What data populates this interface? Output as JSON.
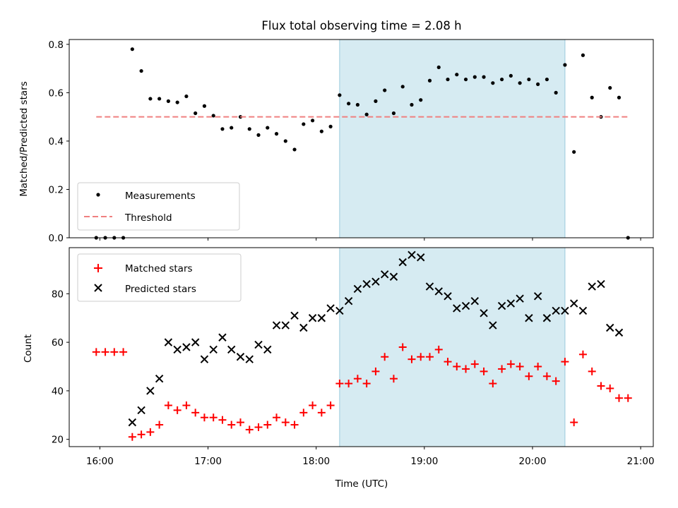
{
  "chart_data": [
    {
      "type": "scatter",
      "title": "Flux total observing time = 2.08 h",
      "xlabel": "",
      "ylabel": "Matched/Predicted stars",
      "xlim": [
        "15:43",
        "21:07"
      ],
      "ylim": [
        0,
        0.82
      ],
      "yticks": [
        "0.0",
        "0.2",
        "0.4",
        "0.6",
        "0.8"
      ],
      "highlight_span": [
        "18:13",
        "20:18"
      ],
      "highlight_color": "#add8e6",
      "legend_position": "lower-left",
      "series": [
        {
          "name": "Measurements",
          "marker": "dot",
          "color": "#000000",
          "points": [
            [
              "15:58",
              0.0
            ],
            [
              "16:03",
              0.0
            ],
            [
              "16:08",
              0.0
            ],
            [
              "16:13",
              0.0
            ],
            [
              "16:18",
              0.78
            ],
            [
              "16:23",
              0.69
            ],
            [
              "16:28",
              0.575
            ],
            [
              "16:33",
              0.575
            ],
            [
              "16:38",
              0.565
            ],
            [
              "16:43",
              0.56
            ],
            [
              "16:48",
              0.585
            ],
            [
              "16:53",
              0.515
            ],
            [
              "16:58",
              0.545
            ],
            [
              "17:03",
              0.505
            ],
            [
              "17:08",
              0.45
            ],
            [
              "17:13",
              0.455
            ],
            [
              "17:18",
              0.5
            ],
            [
              "17:23",
              0.45
            ],
            [
              "17:28",
              0.425
            ],
            [
              "17:33",
              0.455
            ],
            [
              "17:38",
              0.43
            ],
            [
              "17:43",
              0.4
            ],
            [
              "17:48",
              0.365
            ],
            [
              "17:53",
              0.47
            ],
            [
              "17:58",
              0.485
            ],
            [
              "18:03",
              0.44
            ],
            [
              "18:08",
              0.46
            ],
            [
              "18:13",
              0.59
            ],
            [
              "18:18",
              0.555
            ],
            [
              "18:23",
              0.55
            ],
            [
              "18:28",
              0.51
            ],
            [
              "18:33",
              0.565
            ],
            [
              "18:38",
              0.61
            ],
            [
              "18:43",
              0.515
            ],
            [
              "18:48",
              0.625
            ],
            [
              "18:53",
              0.55
            ],
            [
              "18:58",
              0.57
            ],
            [
              "19:03",
              0.65
            ],
            [
              "19:08",
              0.705
            ],
            [
              "19:13",
              0.655
            ],
            [
              "19:18",
              0.675
            ],
            [
              "19:23",
              0.655
            ],
            [
              "19:28",
              0.665
            ],
            [
              "19:33",
              0.665
            ],
            [
              "19:38",
              0.64
            ],
            [
              "19:43",
              0.655
            ],
            [
              "19:48",
              0.67
            ],
            [
              "19:53",
              0.64
            ],
            [
              "19:58",
              0.655
            ],
            [
              "20:03",
              0.635
            ],
            [
              "20:08",
              0.655
            ],
            [
              "20:13",
              0.6
            ],
            [
              "20:18",
              0.715
            ],
            [
              "20:23",
              0.355
            ],
            [
              "20:28",
              0.755
            ],
            [
              "20:33",
              0.58
            ],
            [
              "20:38",
              0.5
            ],
            [
              "20:43",
              0.62
            ],
            [
              "20:48",
              0.58
            ],
            [
              "20:53",
              0.0
            ]
          ]
        },
        {
          "name": "Threshold",
          "marker": "dashed-line",
          "color": "#f08080",
          "points": [
            [
              "15:58",
              0.5
            ],
            [
              "20:53",
              0.5
            ]
          ]
        }
      ]
    },
    {
      "type": "scatter",
      "title": "",
      "xlabel": "Time (UTC)",
      "ylabel": "Count",
      "xlim": [
        "15:43",
        "21:07"
      ],
      "ylim": [
        17,
        99
      ],
      "xticks": [
        "16:00",
        "17:00",
        "18:00",
        "19:00",
        "20:00",
        "21:00"
      ],
      "yticks": [
        "20",
        "40",
        "60",
        "80"
      ],
      "highlight_span": [
        "18:13",
        "20:18"
      ],
      "highlight_color": "#add8e6",
      "legend_position": "top-left",
      "series": [
        {
          "name": "Matched stars",
          "marker": "plus",
          "color": "#ff0000",
          "points": [
            [
              "15:58",
              56
            ],
            [
              "16:03",
              56
            ],
            [
              "16:08",
              56
            ],
            [
              "16:13",
              56
            ],
            [
              "16:18",
              21
            ],
            [
              "16:23",
              22
            ],
            [
              "16:28",
              23
            ],
            [
              "16:33",
              26
            ],
            [
              "16:38",
              34
            ],
            [
              "16:43",
              32
            ],
            [
              "16:48",
              34
            ],
            [
              "16:53",
              31
            ],
            [
              "16:58",
              29
            ],
            [
              "17:03",
              29
            ],
            [
              "17:08",
              28
            ],
            [
              "17:13",
              26
            ],
            [
              "17:18",
              27
            ],
            [
              "17:23",
              24
            ],
            [
              "17:28",
              25
            ],
            [
              "17:33",
              26
            ],
            [
              "17:38",
              29
            ],
            [
              "17:43",
              27
            ],
            [
              "17:48",
              26
            ],
            [
              "17:53",
              31
            ],
            [
              "17:58",
              34
            ],
            [
              "18:03",
              31
            ],
            [
              "18:08",
              34
            ],
            [
              "18:13",
              43
            ],
            [
              "18:18",
              43
            ],
            [
              "18:23",
              45
            ],
            [
              "18:28",
              43
            ],
            [
              "18:33",
              48
            ],
            [
              "18:38",
              54
            ],
            [
              "18:43",
              45
            ],
            [
              "18:48",
              58
            ],
            [
              "18:53",
              53
            ],
            [
              "18:58",
              54
            ],
            [
              "19:03",
              54
            ],
            [
              "19:08",
              57
            ],
            [
              "19:13",
              52
            ],
            [
              "19:18",
              50
            ],
            [
              "19:23",
              49
            ],
            [
              "19:28",
              51
            ],
            [
              "19:33",
              48
            ],
            [
              "19:38",
              43
            ],
            [
              "19:43",
              49
            ],
            [
              "19:48",
              51
            ],
            [
              "19:53",
              50
            ],
            [
              "19:58",
              46
            ],
            [
              "20:03",
              50
            ],
            [
              "20:08",
              46
            ],
            [
              "20:13",
              44
            ],
            [
              "20:18",
              52
            ],
            [
              "20:23",
              27
            ],
            [
              "20:28",
              55
            ],
            [
              "20:33",
              48
            ],
            [
              "20:38",
              42
            ],
            [
              "20:43",
              41
            ],
            [
              "20:48",
              37
            ],
            [
              "20:53",
              37
            ]
          ]
        },
        {
          "name": "Predicted stars",
          "marker": "cross",
          "color": "#000000",
          "points": [
            [
              "16:18",
              27
            ],
            [
              "16:23",
              32
            ],
            [
              "16:28",
              40
            ],
            [
              "16:33",
              45
            ],
            [
              "16:38",
              60
            ],
            [
              "16:43",
              57
            ],
            [
              "16:48",
              58
            ],
            [
              "16:53",
              60
            ],
            [
              "16:58",
              53
            ],
            [
              "17:03",
              57
            ],
            [
              "17:08",
              62
            ],
            [
              "17:13",
              57
            ],
            [
              "17:18",
              54
            ],
            [
              "17:23",
              53
            ],
            [
              "17:28",
              59
            ],
            [
              "17:33",
              57
            ],
            [
              "17:38",
              67
            ],
            [
              "17:43",
              67
            ],
            [
              "17:48",
              71
            ],
            [
              "17:53",
              66
            ],
            [
              "17:58",
              70
            ],
            [
              "18:03",
              70
            ],
            [
              "18:08",
              74
            ],
            [
              "18:13",
              73
            ],
            [
              "18:18",
              77
            ],
            [
              "18:23",
              82
            ],
            [
              "18:28",
              84
            ],
            [
              "18:33",
              85
            ],
            [
              "18:38",
              88
            ],
            [
              "18:43",
              87
            ],
            [
              "18:48",
              93
            ],
            [
              "18:53",
              96
            ],
            [
              "18:58",
              95
            ],
            [
              "19:03",
              83
            ],
            [
              "19:08",
              81
            ],
            [
              "19:13",
              79
            ],
            [
              "19:18",
              74
            ],
            [
              "19:23",
              75
            ],
            [
              "19:28",
              77
            ],
            [
              "19:33",
              72
            ],
            [
              "19:38",
              67
            ],
            [
              "19:43",
              75
            ],
            [
              "19:48",
              76
            ],
            [
              "19:53",
              78
            ],
            [
              "19:58",
              70
            ],
            [
              "20:03",
              79
            ],
            [
              "20:08",
              70
            ],
            [
              "20:13",
              73
            ],
            [
              "20:18",
              73
            ],
            [
              "20:23",
              76
            ],
            [
              "20:28",
              73
            ],
            [
              "20:33",
              83
            ],
            [
              "20:38",
              84
            ],
            [
              "20:43",
              66
            ],
            [
              "20:48",
              64
            ]
          ]
        }
      ]
    }
  ]
}
